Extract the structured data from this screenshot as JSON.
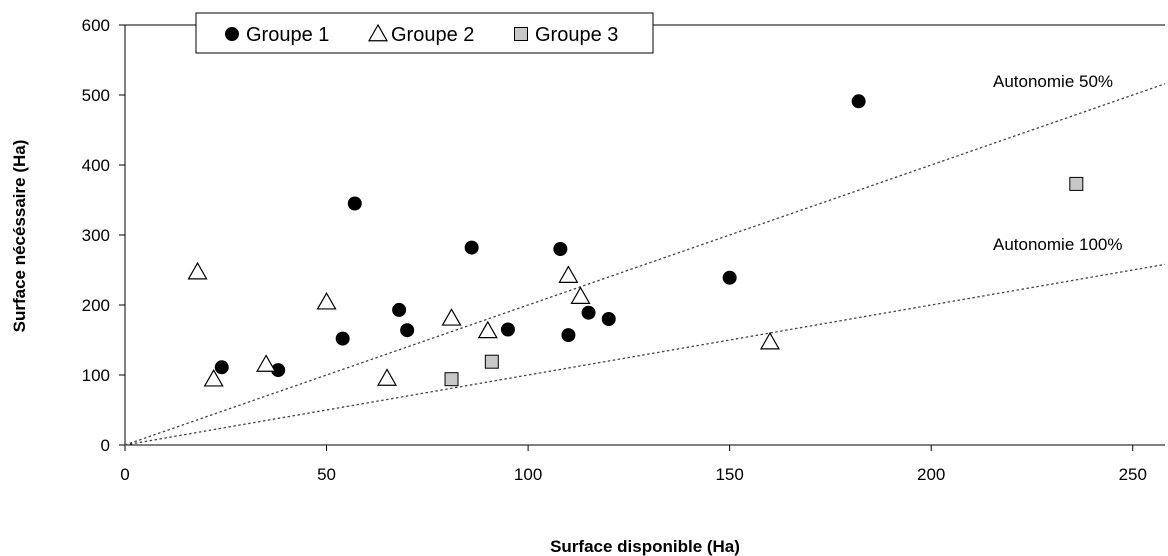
{
  "chart_data": {
    "type": "scatter",
    "title": "",
    "xlabel": "Surface disponible (Ha)",
    "ylabel": "Surface nécéssaire (Ha)",
    "xlim": [
      0,
      258
    ],
    "ylim": [
      0,
      600
    ],
    "xticks": [
      0,
      50,
      100,
      150,
      200,
      250
    ],
    "yticks": [
      0,
      100,
      200,
      300,
      400,
      500,
      600
    ],
    "grid": false,
    "legend_position": "top-left",
    "series": [
      {
        "name": "Groupe 1",
        "marker": "circle",
        "color": "#000000",
        "points": [
          [
            24,
            111
          ],
          [
            38,
            107
          ],
          [
            54,
            152
          ],
          [
            57,
            345
          ],
          [
            68,
            193
          ],
          [
            70,
            164
          ],
          [
            86,
            282
          ],
          [
            95,
            165
          ],
          [
            108,
            280
          ],
          [
            110,
            157
          ],
          [
            115,
            189
          ],
          [
            120,
            180
          ],
          [
            150,
            239
          ],
          [
            182,
            491
          ]
        ]
      },
      {
        "name": "Groupe 2",
        "marker": "triangle",
        "color": "#ffffff",
        "points": [
          [
            18,
            247
          ],
          [
            22,
            94
          ],
          [
            35,
            115
          ],
          [
            50,
            204
          ],
          [
            65,
            95
          ],
          [
            81,
            181
          ],
          [
            90,
            163
          ],
          [
            110,
            242
          ],
          [
            113,
            212
          ],
          [
            160,
            147
          ]
        ]
      },
      {
        "name": "Groupe 3",
        "marker": "square",
        "color": "#c8c8c8",
        "points": [
          [
            81,
            94
          ],
          [
            91,
            119
          ],
          [
            236,
            373
          ]
        ]
      }
    ],
    "reference_lines": [
      {
        "label": "Autonomie 50%",
        "slope": 2,
        "style": "dotted"
      },
      {
        "label": "Autonomie 100%",
        "slope": 1,
        "style": "dotted"
      }
    ]
  }
}
